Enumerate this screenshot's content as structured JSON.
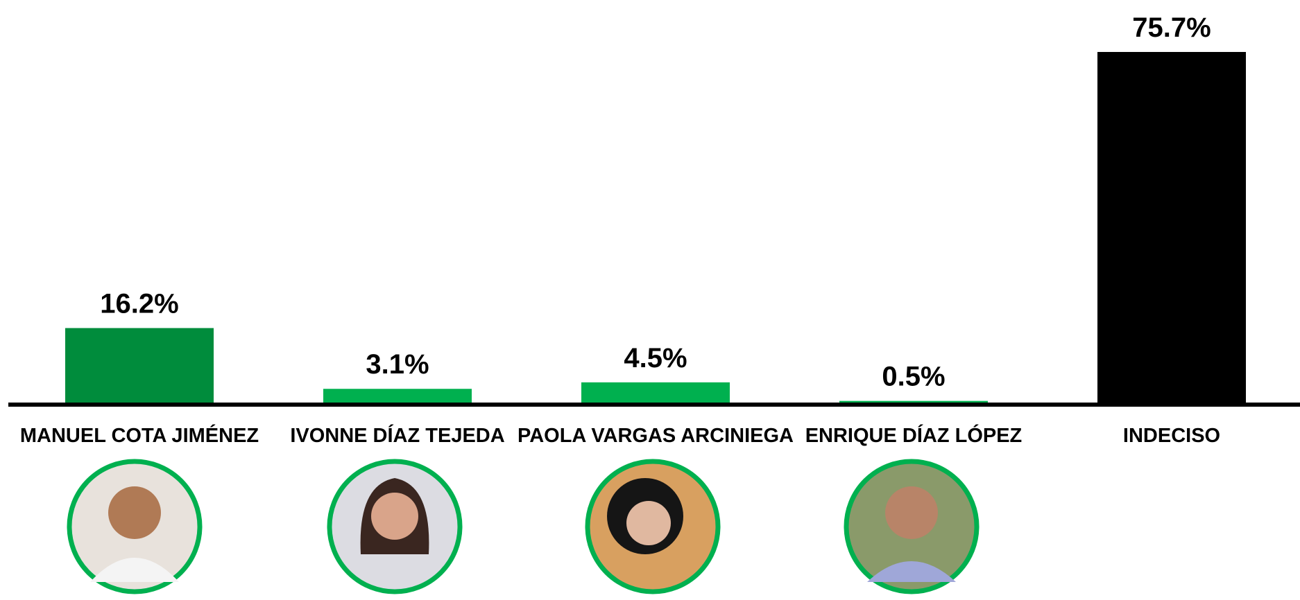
{
  "chart_data": {
    "type": "bar",
    "categories": [
      "MANUEL COTA JIMÉNEZ",
      "IVONNE DÍAZ TEJEDA",
      "PAOLA VARGAS ARCINIEGA",
      "ENRIQUE DÍAZ LÓPEZ",
      "INDECISO"
    ],
    "values": [
      16.2,
      3.1,
      4.5,
      0.5,
      75.7
    ],
    "value_labels": [
      "16.2%",
      "3.1%",
      "4.5%",
      "0.5%",
      "75.7%"
    ],
    "colors": [
      "#008c3c",
      "#00b04f",
      "#00b04f",
      "#00b04f",
      "#000000"
    ]
  }
}
